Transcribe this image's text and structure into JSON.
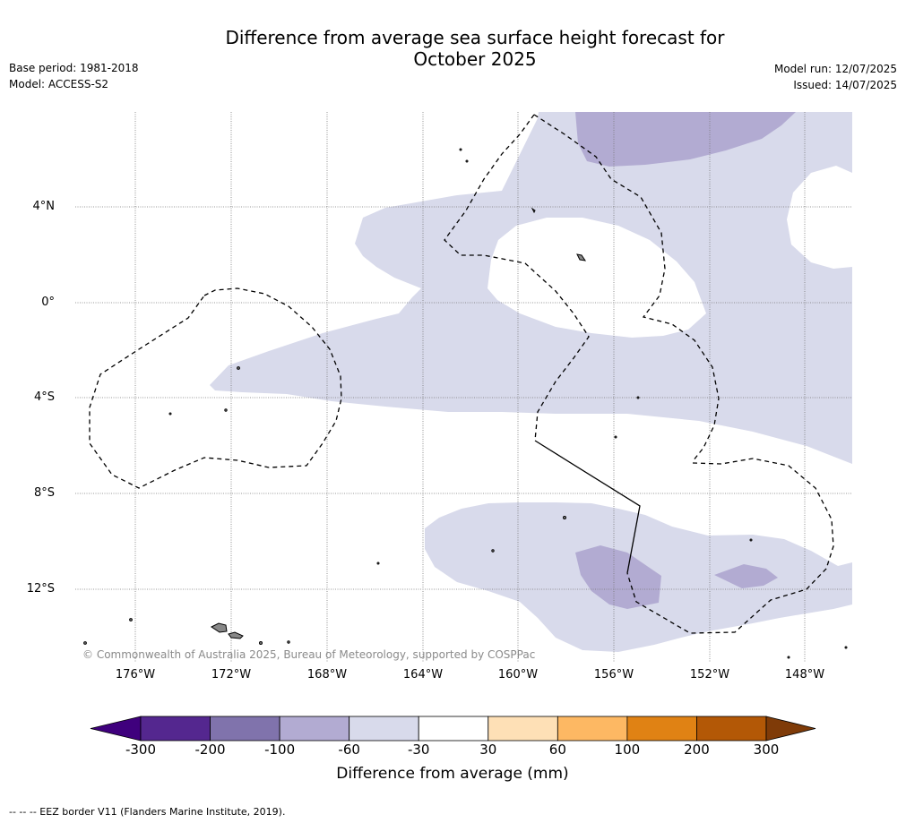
{
  "title_line1": "Difference from average sea surface height forecast for",
  "title_line2": "October 2025",
  "base_period": "Base period: 1981-2018",
  "model": "Model: ACCESS-S2",
  "model_run": "Model run: 12/07/2025",
  "issued": "Issued: 14/07/2025",
  "copyright": "© Commonwealth of Australia 2025, Bureau of Meteorology, supported by COSPPac",
  "lat_labels": [
    "4°N",
    "0°",
    "4°S",
    "8°S",
    "12°S"
  ],
  "lon_labels": [
    "176°W",
    "172°W",
    "168°W",
    "164°W",
    "160°W",
    "156°W",
    "152°W",
    "148°W"
  ],
  "colorbar": {
    "ticks": [
      "-300",
      "-200",
      "-100",
      "-60",
      "-30",
      "30",
      "60",
      "100",
      "200",
      "300"
    ],
    "colors": [
      "#3f007d",
      "#54278f",
      "#8073ac",
      "#b2abd2",
      "#d8daeb",
      "#ffffff",
      "#fee0b6",
      "#fdb863",
      "#e08214",
      "#b35806",
      "#7f3b08"
    ],
    "label": "Difference from average (mm)"
  },
  "footnote": "--  --  -- EEZ border V11 (Flanders Marine Institute, 2019)."
}
